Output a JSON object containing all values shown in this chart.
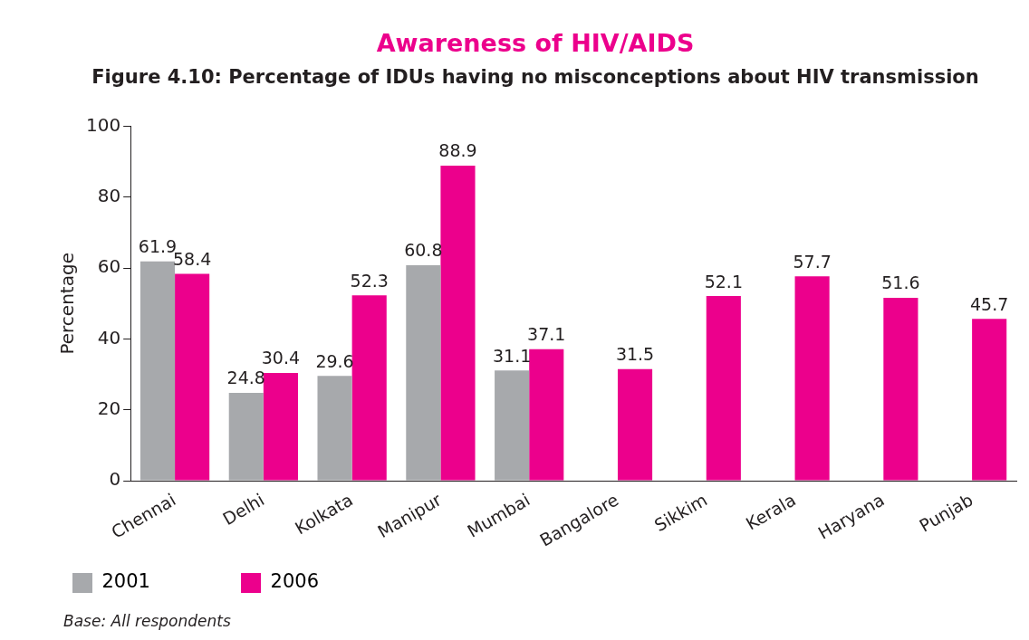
{
  "chart_data": {
    "type": "bar",
    "title": "Awareness of HIV/AIDS",
    "subtitle": "Figure 4.10: Percentage of IDUs having no misconceptions about HIV transmission",
    "ylabel": "Percentage",
    "categories": [
      "Chennai",
      "Delhi",
      "Kolkata",
      "Manipur",
      "Mumbai",
      "Bangalore",
      "Sikkim",
      "Kerala",
      "Haryana",
      "Punjab"
    ],
    "series": [
      {
        "name": "2001",
        "color": "#a7a9ac",
        "values": [
          61.9,
          24.8,
          29.6,
          60.8,
          31.1,
          null,
          null,
          null,
          null,
          null
        ]
      },
      {
        "name": "2006",
        "color": "#ec008c",
        "values": [
          58.4,
          30.4,
          52.3,
          88.9,
          37.1,
          31.5,
          52.1,
          57.7,
          51.6,
          45.7
        ]
      }
    ],
    "ylim": [
      0,
      100
    ],
    "yticks": [
      0,
      20,
      40,
      60,
      80,
      100
    ],
    "grid": false,
    "legend": "bottom left",
    "data_labels": true,
    "annotations": [
      "Base: All respondents"
    ]
  }
}
